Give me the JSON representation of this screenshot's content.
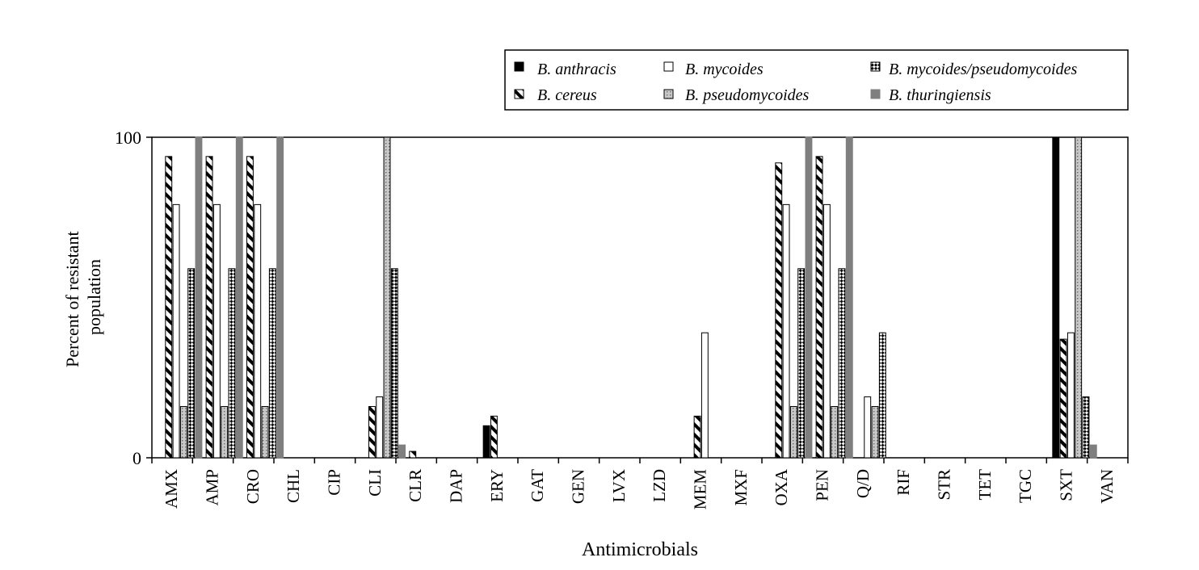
{
  "chart_data": {
    "type": "bar",
    "xlabel": "Antimicrobials",
    "ylabel": "Percent of resistant population",
    "ylabel_lines": [
      "Percent of resistant",
      "population"
    ],
    "ylim": [
      0,
      100
    ],
    "yticks": [
      0,
      100
    ],
    "grid": false,
    "legend_position": "top-right",
    "categories": [
      "AMX",
      "AMP",
      "CRO",
      "CHL",
      "CIP",
      "CLI",
      "CLR",
      "DAP",
      "ERY",
      "GAT",
      "GEN",
      "LVX",
      "LZD",
      "MEM",
      "MXF",
      "OXA",
      "PEN",
      "Q/D",
      "RIF",
      "STR",
      "TET",
      "TGC",
      "SXT",
      "VAN"
    ],
    "series": [
      {
        "name": "B. anthracis",
        "pattern": "solid-black",
        "values": [
          0,
          0,
          0,
          0,
          0,
          0,
          0,
          0,
          10,
          0,
          0,
          0,
          0,
          0,
          0,
          0,
          0,
          0,
          0,
          0,
          0,
          0,
          100,
          0
        ]
      },
      {
        "name": "B. cereus",
        "pattern": "diagonal-stripes",
        "values": [
          94,
          94,
          94,
          0,
          0,
          16,
          2,
          0,
          13,
          0,
          0,
          0,
          0,
          13,
          0,
          92,
          94,
          0,
          0,
          0,
          0,
          0,
          37,
          0
        ]
      },
      {
        "name": "B. mycoides",
        "pattern": "white",
        "values": [
          79,
          79,
          79,
          0,
          0,
          19,
          0,
          0,
          0,
          0,
          0,
          0,
          0,
          39,
          0,
          79,
          79,
          19,
          0,
          0,
          0,
          0,
          39,
          0
        ]
      },
      {
        "name": "B. pseudomycoides",
        "pattern": "dotted-gray",
        "values": [
          16,
          16,
          16,
          0,
          0,
          100,
          0,
          0,
          0,
          0,
          0,
          0,
          0,
          0,
          0,
          16,
          16,
          16,
          0,
          0,
          0,
          0,
          100,
          0
        ]
      },
      {
        "name": "B. mycoides/pseudomycoides",
        "pattern": "checker-black",
        "values": [
          59,
          59,
          59,
          0,
          0,
          59,
          0,
          0,
          0,
          0,
          0,
          0,
          0,
          0,
          0,
          59,
          59,
          39,
          0,
          0,
          0,
          0,
          19,
          0
        ]
      },
      {
        "name": "B. thuringiensis",
        "pattern": "solid-gray",
        "values": [
          100,
          100,
          100,
          0,
          0,
          4,
          0,
          0,
          0,
          0,
          0,
          0,
          0,
          0,
          0,
          100,
          100,
          0,
          0,
          0,
          0,
          0,
          4,
          0
        ]
      }
    ],
    "colors": {
      "black": "#000000",
      "gray": "#7f7f7f",
      "light_gray": "#c8c8c8",
      "white": "#ffffff"
    }
  }
}
